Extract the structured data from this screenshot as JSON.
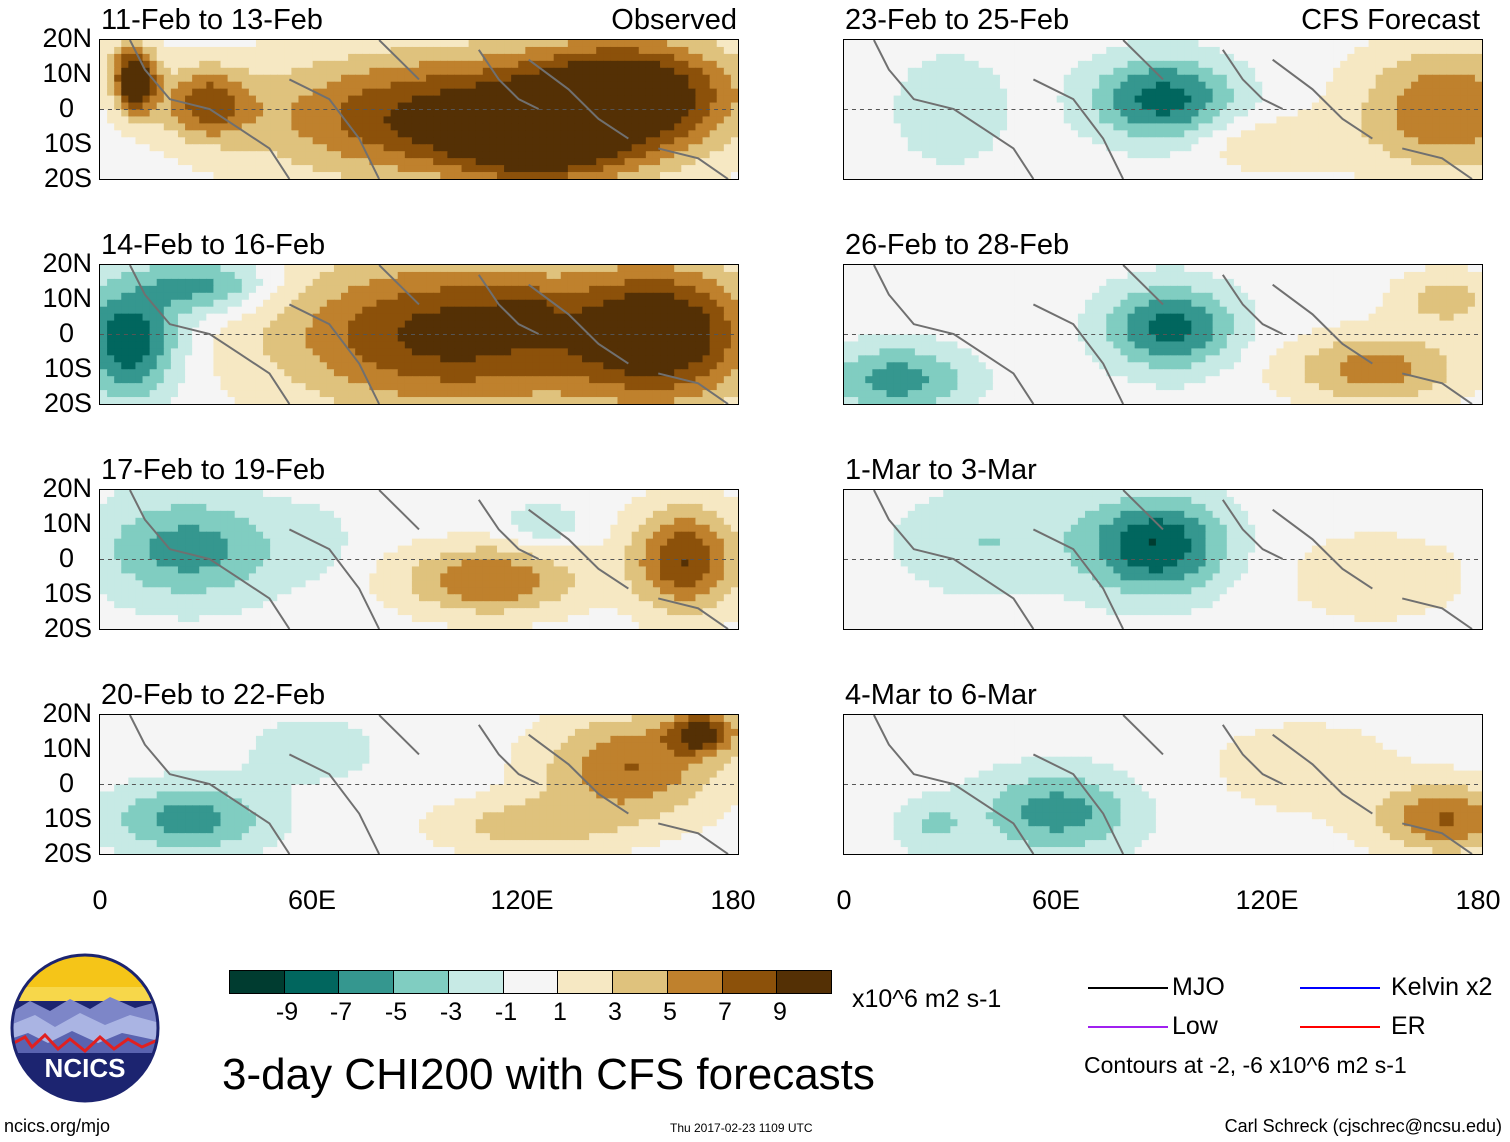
{
  "colors": {
    "scale": [
      "#003c30",
      "#01665e",
      "#35978f",
      "#80cdc1",
      "#c7eae5",
      "#f5f5f5",
      "#f6e8c3",
      "#dfc27d",
      "#bf812d",
      "#8c510a",
      "#543005"
    ],
    "mjo": "#000000",
    "kelvin": "#0000ff",
    "low": "#a020f0",
    "er": "#ff0000"
  },
  "chart_data": {
    "type": "heatmap",
    "title": "3-day CHI200 with CFS forecasts",
    "units": "x10^6 m2 s-1",
    "lon_range": [
      0,
      180
    ],
    "lat_range": [
      -20,
      20
    ],
    "y_ticks": [
      "20N",
      "10N",
      "0",
      "10S",
      "20S"
    ],
    "x_ticks": [
      "0",
      "60E",
      "120E",
      "180"
    ],
    "colorbar_labels": [
      "-9",
      "-7",
      "-5",
      "-3",
      "-1",
      "1",
      "3",
      "5",
      "7",
      "9"
    ],
    "legend": [
      {
        "key": "mjo",
        "label": "MJO"
      },
      {
        "key": "kelvin",
        "label": "Kelvin x2"
      },
      {
        "key": "low",
        "label": "Low"
      },
      {
        "key": "er",
        "label": "ER"
      }
    ],
    "contours_note": "Contours at -2, -6 x10^6 m2 s-1",
    "panels": [
      {
        "title": "11-Feb to 13-Feb",
        "label": "Observed",
        "col": 0,
        "row": 0,
        "blobs": [
          [
            10,
            8,
            6,
            9,
            12
          ],
          [
            30,
            2,
            12,
            10,
            7
          ],
          [
            100,
            -2,
            55,
            18,
            10
          ],
          [
            150,
            5,
            30,
            16,
            10
          ],
          [
            125,
            -12,
            25,
            10,
            6
          ],
          [
            5,
            15,
            8,
            6,
            2
          ]
        ]
      },
      {
        "title": "14-Feb to 16-Feb",
        "label": "",
        "col": 0,
        "row": 1,
        "blobs": [
          [
            8,
            -2,
            14,
            16,
            -9
          ],
          [
            30,
            14,
            18,
            8,
            -6
          ],
          [
            100,
            0,
            50,
            22,
            10
          ],
          [
            160,
            0,
            25,
            20,
            10
          ],
          [
            120,
            8,
            8,
            5,
            2
          ]
        ]
      },
      {
        "title": "17-Feb to 19-Feb",
        "label": "",
        "col": 0,
        "row": 2,
        "blobs": [
          [
            25,
            3,
            25,
            15,
            -6
          ],
          [
            110,
            -6,
            25,
            10,
            7
          ],
          [
            165,
            0,
            15,
            15,
            9
          ],
          [
            125,
            10,
            10,
            6,
            -3
          ],
          [
            60,
            5,
            10,
            10,
            -2
          ]
        ]
      },
      {
        "title": "20-Feb to 22-Feb",
        "label": "",
        "col": 0,
        "row": 3,
        "blobs": [
          [
            25,
            -10,
            22,
            10,
            -6
          ],
          [
            150,
            5,
            25,
            15,
            7
          ],
          [
            170,
            15,
            10,
            6,
            9
          ],
          [
            60,
            10,
            20,
            10,
            -2
          ],
          [
            120,
            -12,
            25,
            8,
            4
          ]
        ]
      },
      {
        "title": "23-Feb to 25-Feb",
        "label": "CFS Forecast",
        "col": 1,
        "row": 0,
        "blobs": [
          [
            90,
            3,
            20,
            12,
            -8
          ],
          [
            170,
            0,
            25,
            18,
            7
          ],
          [
            30,
            0,
            15,
            15,
            -3
          ],
          [
            120,
            -10,
            20,
            8,
            3
          ]
        ]
      },
      {
        "title": "26-Feb to 28-Feb",
        "label": "",
        "col": 1,
        "row": 1,
        "blobs": [
          [
            92,
            2,
            18,
            12,
            -8
          ],
          [
            15,
            -13,
            20,
            10,
            -6
          ],
          [
            150,
            -10,
            25,
            10,
            6
          ],
          [
            170,
            10,
            15,
            8,
            4
          ]
        ]
      },
      {
        "title": "1-Mar to 3-Mar",
        "label": "",
        "col": 1,
        "row": 2,
        "blobs": [
          [
            88,
            4,
            20,
            14,
            -9
          ],
          [
            40,
            5,
            25,
            15,
            -3
          ],
          [
            150,
            -5,
            30,
            15,
            2
          ]
        ]
      },
      {
        "title": "4-Mar to 6-Mar",
        "label": "",
        "col": 1,
        "row": 3,
        "blobs": [
          [
            60,
            -8,
            22,
            12,
            -6
          ],
          [
            25,
            -12,
            10,
            8,
            -3
          ],
          [
            170,
            -10,
            20,
            10,
            7
          ],
          [
            130,
            5,
            30,
            15,
            2
          ]
        ]
      }
    ]
  },
  "site": "ncics.org/mjo",
  "stamp": "Thu 2017-02-23 1109 UTC",
  "author": "Carl Schreck (cjschrec@ncsu.edu)",
  "logo_text": "NCICS"
}
